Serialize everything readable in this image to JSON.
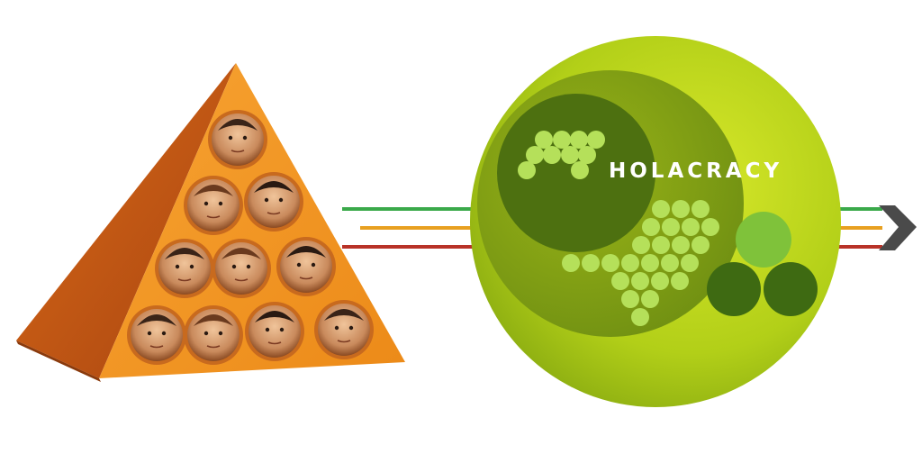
{
  "brand": {
    "title": "HOLACRACY"
  },
  "colors": {
    "pyramid_front": "#f2901f",
    "pyramid_side": "#c25a12",
    "pyramid_shadow": "#9a3f0c",
    "circle_outer": "#b9d31a",
    "circle_mid": "#8aa414",
    "circle_inner": "#4d7010",
    "dot_light": "#b5e05a",
    "dot_dark": "#3e6a12",
    "arrow_green": "#3aa94a",
    "arrow_orange": "#e8a020",
    "arrow_red": "#b83228",
    "arrow_head": "#4a4a4a"
  },
  "icons": {
    "arrow": "arrow-right-icon",
    "pyramid": "pyramid-hierarchy-icon",
    "circle": "holacracy-circle-icon",
    "face": "person-portrait-icon"
  },
  "pyramid": {
    "rows": [
      1,
      2,
      3,
      4
    ]
  }
}
